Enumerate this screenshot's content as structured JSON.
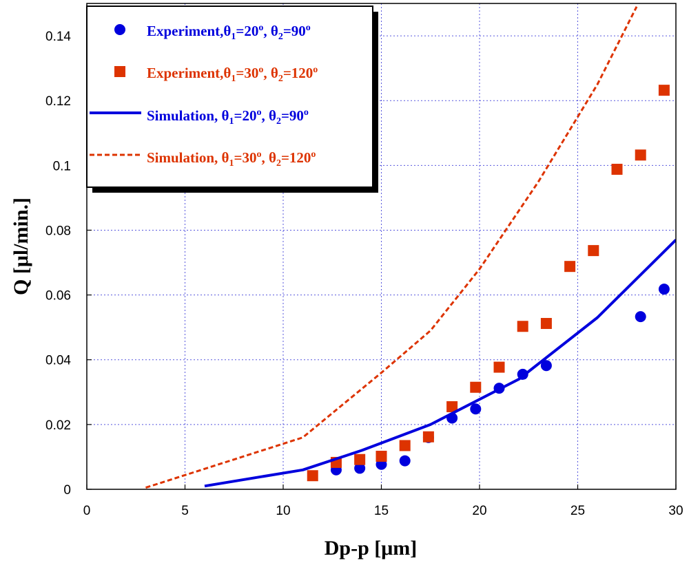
{
  "chart_data": {
    "type": "scatter",
    "title": "",
    "xlabel": "Dp-p [μm]",
    "ylabel": "Q [μl/min.]",
    "xlim": [
      0,
      30
    ],
    "ylim": [
      0,
      0.15
    ],
    "x_ticks": [
      "0",
      "5",
      "10",
      "15",
      "20",
      "25",
      "30"
    ],
    "y_ticks": [
      "0",
      "0.02",
      "0.04",
      "0.06",
      "0.08",
      "0.1",
      "0.12",
      "0.14"
    ],
    "grid": true,
    "legend_position": "top-left",
    "series": [
      {
        "name": "Experiment, θ1=20°, θ2=90°",
        "legend_parts": [
          "Experiment,",
          "θ",
          "1",
          "=20",
          "o",
          ", θ",
          "2",
          "=90",
          "o"
        ],
        "kind": "scatter",
        "marker": "circle",
        "color": "#0000dd",
        "x": [
          12.7,
          13.9,
          15.0,
          16.2,
          17.4,
          18.6,
          19.8,
          21.0,
          22.2,
          23.4,
          28.2,
          29.4
        ],
        "y": [
          0.006,
          0.0065,
          0.0077,
          0.0088,
          0.016,
          0.022,
          0.0248,
          0.0312,
          0.0355,
          0.0382,
          0.0533,
          0.0618
        ]
      },
      {
        "name": "Experiment, θ1=30°, θ2=120°",
        "legend_parts": [
          "Experiment,",
          "θ",
          "1",
          "=30",
          "o",
          ", θ",
          "2",
          "=120",
          "o"
        ],
        "kind": "scatter",
        "marker": "square",
        "color": "#dd3300",
        "x": [
          11.5,
          12.7,
          13.9,
          15.0,
          16.2,
          17.4,
          18.6,
          19.8,
          21.0,
          22.2,
          23.4,
          24.6,
          25.8,
          27.0,
          28.2,
          29.4
        ],
        "y": [
          0.0042,
          0.0083,
          0.0092,
          0.0102,
          0.0135,
          0.0162,
          0.0255,
          0.0315,
          0.0377,
          0.0503,
          0.0512,
          0.0688,
          0.0737,
          0.0988,
          0.1032,
          0.1232
        ]
      },
      {
        "name": "Simulation, θ1=20°, θ2=90°",
        "legend_parts": [
          "Simulation, ",
          "θ",
          "1",
          "=20",
          "o",
          ", θ",
          "2",
          "=90",
          "o"
        ],
        "kind": "line",
        "style": "solid",
        "color": "#0000dd",
        "x": [
          6,
          11,
          14,
          17.5,
          22,
          26,
          30
        ],
        "y": [
          0.001,
          0.006,
          0.012,
          0.02,
          0.034,
          0.053,
          0.077
        ]
      },
      {
        "name": "Simulation, θ1=30°, θ2=120°",
        "legend_parts": [
          "Simulation, ",
          "θ",
          "1",
          "=30",
          "o",
          ", θ",
          "2",
          "=120",
          "o"
        ],
        "kind": "line",
        "style": "dashed",
        "color": "#dd3300",
        "x": [
          3,
          11,
          15,
          17.5,
          20,
          23,
          26,
          28
        ],
        "y": [
          0.0005,
          0.016,
          0.036,
          0.049,
          0.068,
          0.095,
          0.125,
          0.149
        ]
      }
    ]
  }
}
